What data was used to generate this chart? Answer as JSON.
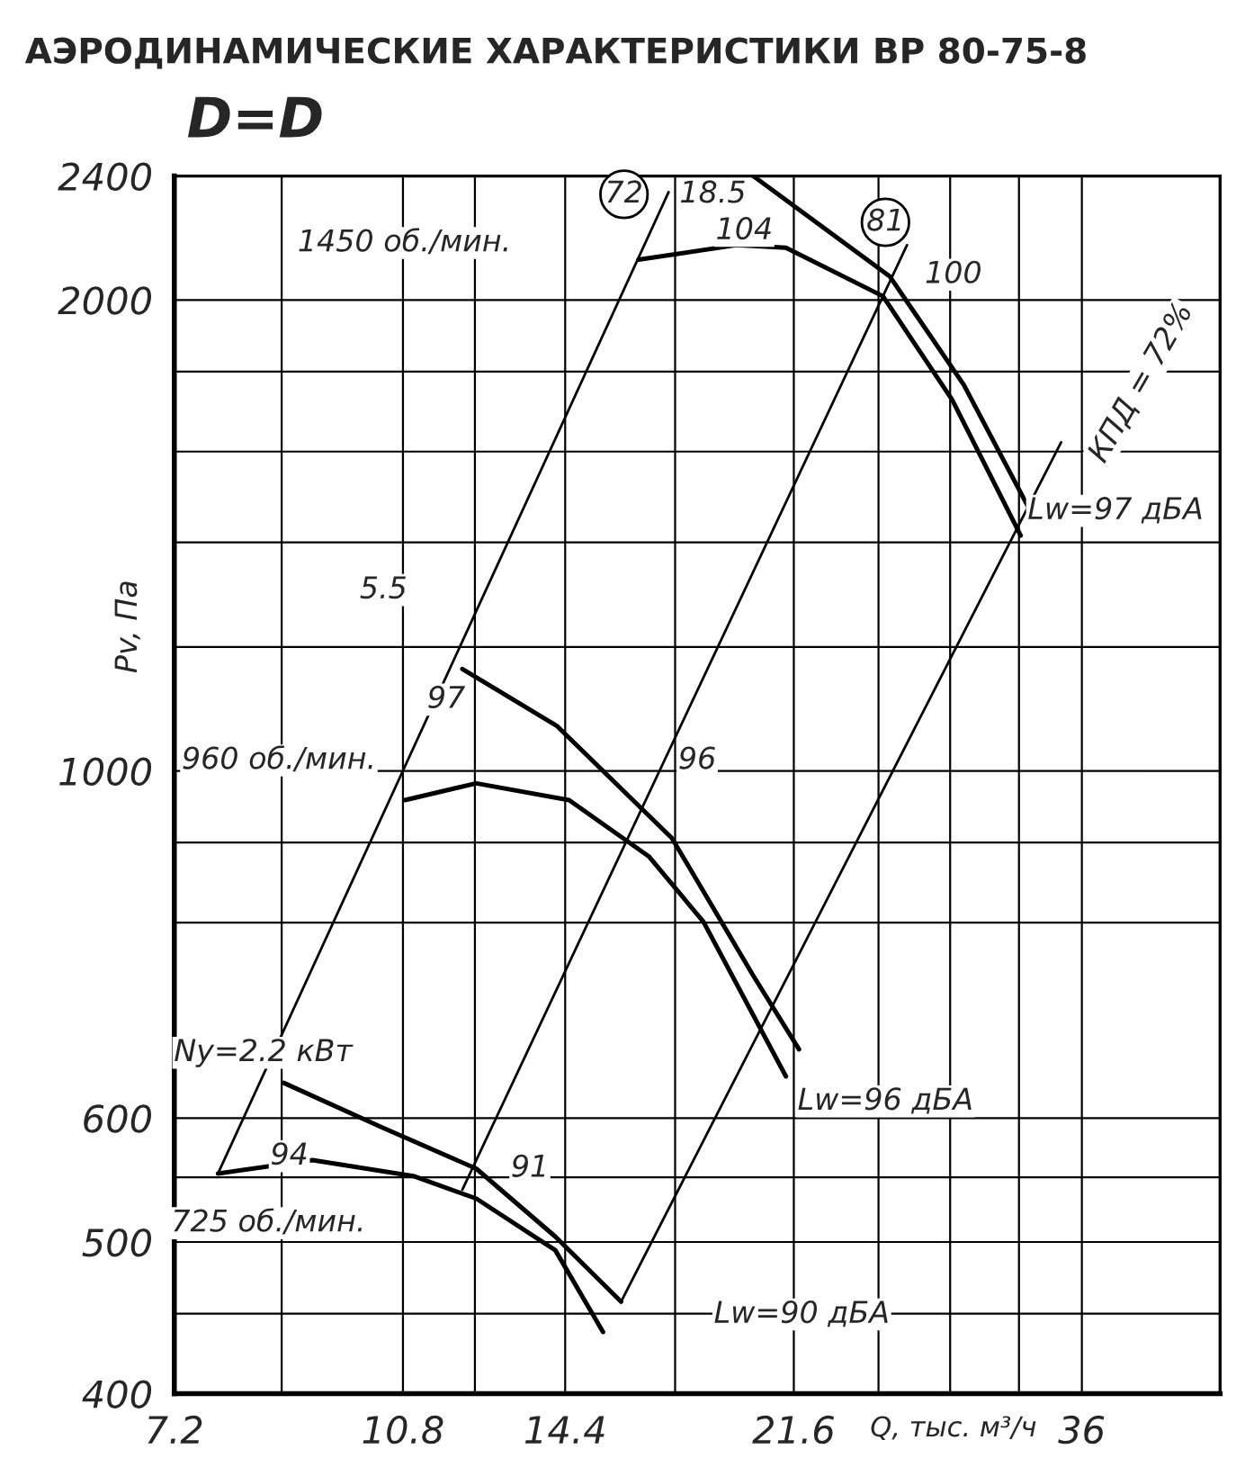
{
  "chart_data": {
    "type": "line",
    "title": "АЭРОДИНАМИЧЕСКИЕ ХАРАКТЕРИСТИКИ ВР 80-75-8",
    "subtitle": "D=D",
    "xlabel": "Q, тыс. м³/ч",
    "ylabel": "Pv, Па",
    "log": "xy",
    "xlim": [
      7.2,
      46
    ],
    "ylim": [
      400,
      2400
    ],
    "xticks": [
      7.2,
      {
        "value": 8.71,
        "label": null
      },
      10.8,
      {
        "value": 12.27,
        "label": null
      },
      14.4,
      {
        "value": 17.5,
        "label": null
      },
      21.6,
      {
        "value": 25.1,
        "label": null
      },
      {
        "value": 28.5,
        "label": null
      },
      {
        "value": 32.2,
        "label": null
      },
      36
    ],
    "yticks": [
      400,
      {
        "value": 450,
        "label": null
      },
      500,
      {
        "value": 550,
        "label": null
      },
      600,
      {
        "value": 800,
        "label": null
      },
      {
        "value": 900,
        "label": null
      },
      1000,
      {
        "value": 1200,
        "label": null
      },
      {
        "value": 1400,
        "label": null
      },
      {
        "value": 1600,
        "label": null
      },
      {
        "value": 1800,
        "label": null
      },
      2000,
      2400
    ],
    "grid": true,
    "legend": false,
    "marker": "none",
    "line_style": "solid",
    "series": [
      {
        "color": "#000000",
        "x": [
          16.4,
          19.5,
          21.3,
          25.3,
          28.6,
          32.3
        ],
        "values": [
          2122,
          2168,
          2160,
          2011,
          1727,
          1414
        ]
      },
      {
        "color": "#000000",
        "x": [
          20.1,
          25.6,
          29.2,
          32.7
        ],
        "values": [
          2400,
          2071,
          1765,
          1477
        ]
      },
      {
        "color": "#000000",
        "x": [
          10.84,
          12.3,
          14.5,
          16.7,
          18.4,
          21.3
        ],
        "values": [
          958,
          982,
          958,
          882,
          801,
          638
        ]
      },
      {
        "color": "#000000",
        "x": [
          12.0,
          14.2,
          17.4,
          20.1,
          21.8
        ],
        "values": [
          1162,
          1068,
          906,
          740,
          664
        ]
      },
      {
        "color": "#000000",
        "x": [
          7.78,
          9.2,
          11.0,
          12.3,
          14.15,
          15.4
        ],
        "values": [
          553,
          564,
          551,
          533,
          494,
          438
        ]
      },
      {
        "color": "#000000",
        "x": [
          8.74,
          10.4,
          12.3,
          14.15,
          15.9
        ],
        "values": [
          632,
          592,
          557,
          504,
          458
        ]
      },
      {
        "color": "#000000",
        "x": [
          7.78,
          17.3
        ],
        "values": [
          553,
          2344
        ]
      },
      {
        "color": "#000000",
        "x": [
          12.0,
          26.4
        ],
        "values": [
          540,
          2168
        ]
      },
      {
        "color": "#000000",
        "x": [
          15.9,
          34.7
        ],
        "values": [
          458,
          1622
        ]
      }
    ],
    "annotations": [
      "1450 об./мин.",
      "18.5",
      "104",
      "72",
      "81",
      "100",
      "КПД = 72%",
      "Lw=97 дБА",
      "5.5",
      "97",
      "960 об./мин.",
      "96",
      "Ny=2.2 кВт",
      "Lw=96 дБА",
      "94",
      "91",
      "725 об./мин.",
      "Lw=90 дБА"
    ]
  }
}
